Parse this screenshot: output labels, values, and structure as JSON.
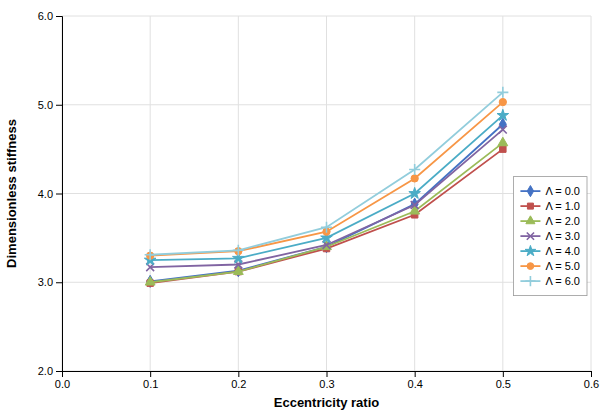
{
  "chart_data": {
    "type": "line",
    "xlabel": "Eccentricity ratio",
    "ylabel": "Dimensionless stiffness",
    "x": [
      0.1,
      0.2,
      0.3,
      0.4,
      0.5
    ],
    "series": [
      {
        "name": "Λ = 0.0",
        "color": "#4472C4",
        "marker": "diamond",
        "values": [
          3.01,
          3.13,
          3.4,
          3.88,
          4.78
        ]
      },
      {
        "name": "Λ = 1.0",
        "color": "#C0504D",
        "marker": "square",
        "values": [
          2.99,
          3.12,
          3.38,
          3.76,
          4.5
        ]
      },
      {
        "name": "Λ = 2.0",
        "color": "#9BBB59",
        "marker": "triangle",
        "values": [
          3.0,
          3.12,
          3.4,
          3.8,
          4.57
        ]
      },
      {
        "name": "Λ = 3.0",
        "color": "#8064A2",
        "marker": "x",
        "values": [
          3.17,
          3.2,
          3.42,
          3.87,
          4.72
        ]
      },
      {
        "name": "Λ = 4.0",
        "color": "#4BACC6",
        "marker": "star",
        "values": [
          3.25,
          3.27,
          3.5,
          4.0,
          4.88
        ]
      },
      {
        "name": "Λ = 5.0",
        "color": "#F79646",
        "marker": "circle",
        "values": [
          3.3,
          3.35,
          3.57,
          4.17,
          5.03
        ]
      },
      {
        "name": "Λ = 6.0",
        "color": "#92CDDC",
        "marker": "plus",
        "values": [
          3.31,
          3.36,
          3.62,
          4.27,
          5.14
        ]
      }
    ],
    "xlim": [
      0.0,
      0.6
    ],
    "ylim": [
      2.0,
      6.0
    ],
    "xticks": [
      {
        "value": 0.0,
        "label": "0.0"
      },
      0.1,
      0.2,
      0.3,
      0.4,
      0.5,
      0.6
    ],
    "yticks": [
      {
        "value": 2.0,
        "label": "2.0"
      },
      {
        "value": 3.0,
        "label": "3.0"
      },
      {
        "value": 4.0,
        "label": "4.0"
      },
      {
        "value": 5.0,
        "label": "5.0"
      },
      {
        "value": 6.0,
        "label": "6.0"
      }
    ],
    "grid": true,
    "legend": "right"
  }
}
